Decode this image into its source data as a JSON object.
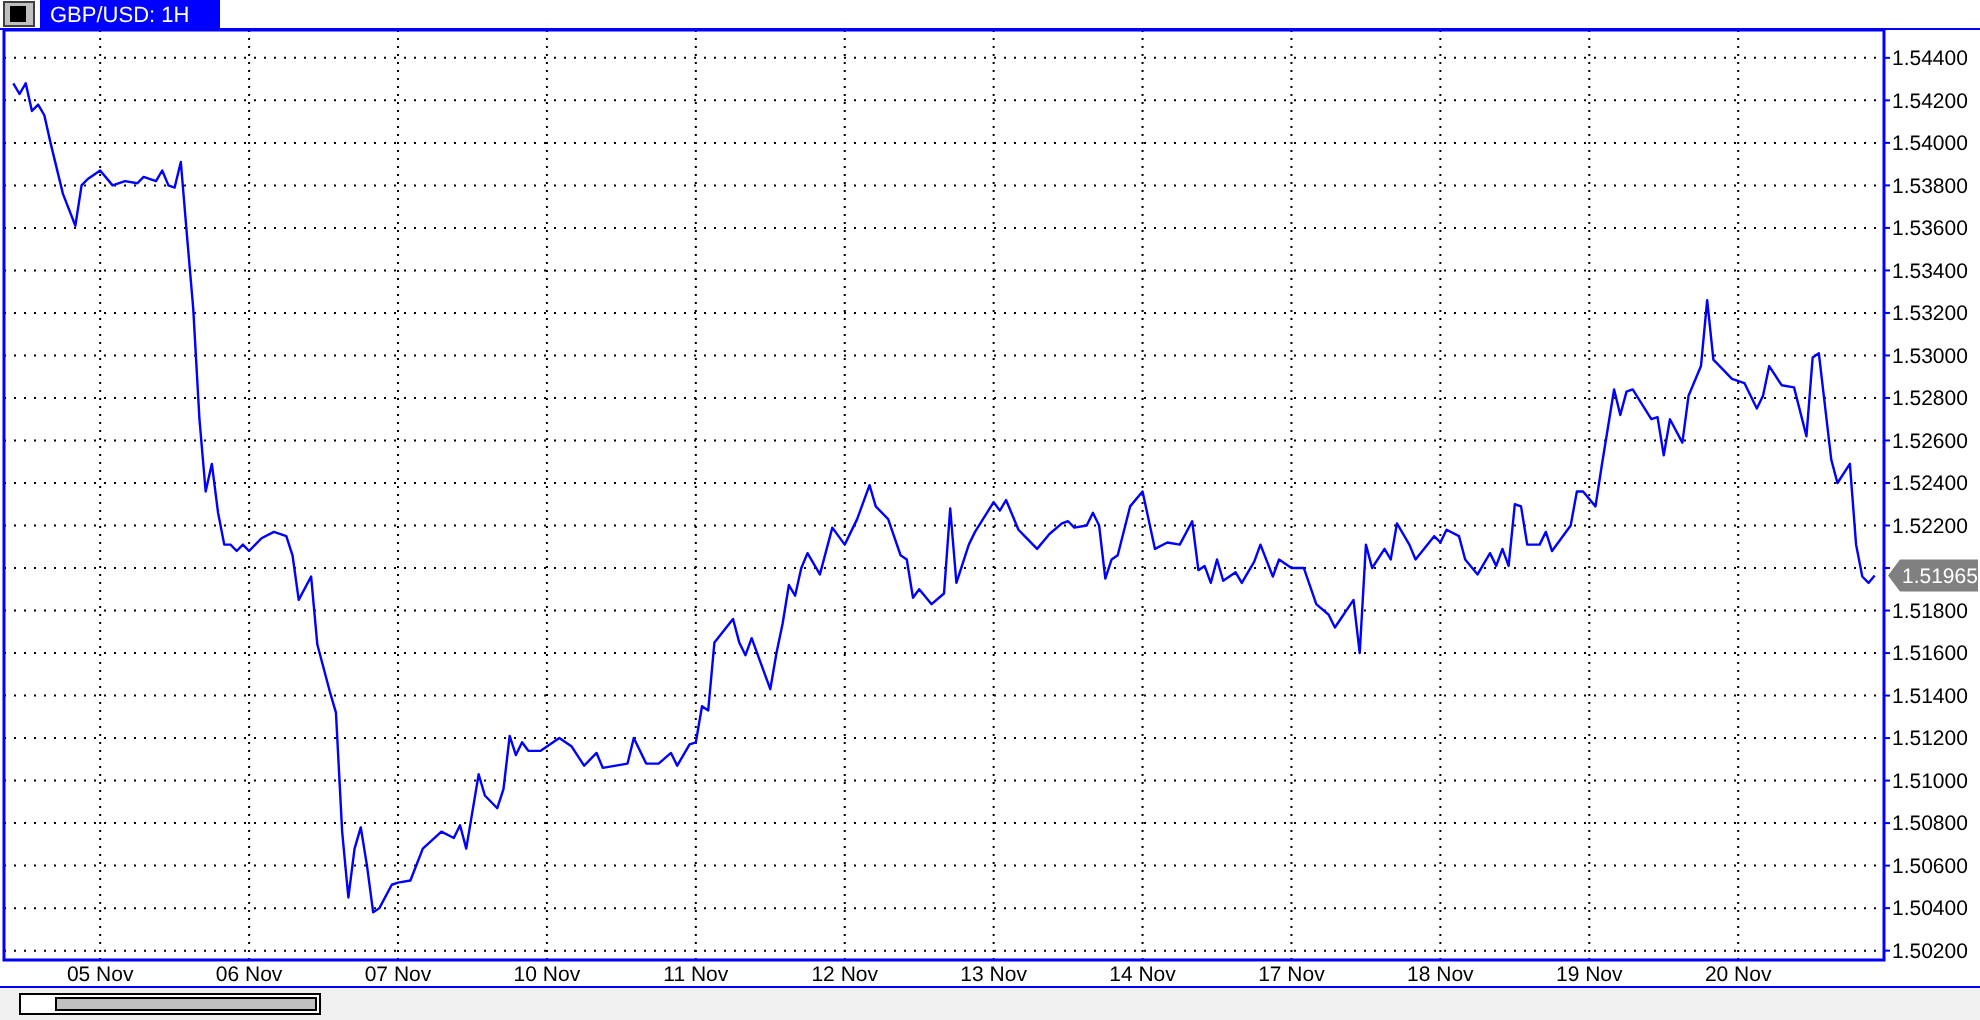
{
  "chart_data": {
    "type": "line",
    "title": "GBP/USD: 1H",
    "grid": true,
    "marker": "none",
    "line_style": "solid",
    "categories": [
      null,
      null,
      null,
      null,
      null,
      null,
      null,
      null,
      null,
      null,
      null,
      null,
      null,
      null,
      null,
      "05 Nov",
      null,
      null,
      null,
      null,
      null,
      null,
      null,
      null,
      null,
      null,
      null,
      null,
      null,
      null,
      null,
      null,
      null,
      null,
      null,
      null,
      null,
      null,
      null,
      "06 Nov",
      null,
      null,
      null,
      null,
      null,
      null,
      null,
      null,
      null,
      null,
      null,
      null,
      null,
      null,
      null,
      null,
      null,
      null,
      null,
      null,
      null,
      null,
      null,
      "07 Nov",
      null,
      null,
      null,
      null,
      null,
      null,
      null,
      null,
      null,
      null,
      null,
      null,
      null,
      null,
      null,
      null,
      null,
      null,
      null,
      null,
      null,
      null,
      null,
      "10 Nov",
      null,
      null,
      null,
      null,
      null,
      null,
      null,
      null,
      null,
      null,
      null,
      null,
      null,
      null,
      null,
      null,
      null,
      null,
      null,
      null,
      null,
      null,
      null,
      "11 Nov",
      null,
      null,
      null,
      null,
      null,
      null,
      null,
      null,
      null,
      null,
      null,
      null,
      null,
      null,
      null,
      null,
      null,
      null,
      null,
      null,
      null,
      null,
      null,
      "12 Nov",
      null,
      null,
      null,
      null,
      null,
      null,
      null,
      null,
      null,
      null,
      null,
      null,
      null,
      null,
      null,
      null,
      null,
      null,
      null,
      null,
      null,
      null,
      null,
      "13 Nov",
      null,
      null,
      null,
      null,
      null,
      null,
      null,
      null,
      null,
      null,
      null,
      null,
      null,
      null,
      null,
      null,
      null,
      null,
      null,
      null,
      null,
      null,
      null,
      "14 Nov",
      null,
      null,
      null,
      null,
      null,
      null,
      null,
      null,
      null,
      null,
      null,
      null,
      null,
      null,
      null,
      null,
      null,
      null,
      null,
      null,
      null,
      null,
      null,
      "17 Nov",
      null,
      null,
      null,
      null,
      null,
      null,
      null,
      null,
      null,
      null,
      null,
      null,
      null,
      null,
      null,
      null,
      null,
      null,
      null,
      null,
      null,
      null,
      null,
      "18 Nov",
      null,
      null,
      null,
      null,
      null,
      null,
      null,
      null,
      null,
      null,
      null,
      null,
      null,
      null,
      null,
      null,
      null,
      null,
      null,
      null,
      null,
      null,
      null,
      "19 Nov",
      null,
      null,
      null,
      null,
      null,
      null,
      null,
      null,
      null,
      null,
      null,
      null,
      null,
      null,
      null,
      null,
      null,
      null,
      null,
      null,
      null,
      null,
      null,
      "20 Nov",
      null,
      null,
      null,
      null,
      null,
      null,
      null,
      null,
      null,
      null,
      null,
      null,
      null,
      null,
      null,
      null,
      null,
      null,
      null,
      null,
      null,
      null,
      null
    ],
    "ylim": [
      1.50156,
      1.54531
    ],
    "yticks": [
      {
        "value": 1.502,
        "label": "1.50200"
      },
      {
        "value": 1.504,
        "label": "1.50400"
      },
      {
        "value": 1.506,
        "label": "1.50600"
      },
      {
        "value": 1.508,
        "label": "1.50800"
      },
      {
        "value": 1.51,
        "label": "1.51000"
      },
      {
        "value": 1.512,
        "label": "1.51200"
      },
      {
        "value": 1.514,
        "label": "1.51400"
      },
      {
        "value": 1.516,
        "label": "1.51600"
      },
      {
        "value": 1.518,
        "label": "1.51800"
      },
      {
        "value": 1.52,
        "label": null
      },
      {
        "value": 1.522,
        "label": "1.52200"
      },
      {
        "value": 1.524,
        "label": "1.52400"
      },
      {
        "value": 1.526,
        "label": "1.52600"
      },
      {
        "value": 1.528,
        "label": "1.52800"
      },
      {
        "value": 1.53,
        "label": "1.53000"
      },
      {
        "value": 1.532,
        "label": "1.53200"
      },
      {
        "value": 1.534,
        "label": "1.53400"
      },
      {
        "value": 1.536,
        "label": "1.53600"
      },
      {
        "value": 1.538,
        "label": "1.53800"
      },
      {
        "value": 1.54,
        "label": "1.54000"
      },
      {
        "value": 1.542,
        "label": "1.54200"
      },
      {
        "value": 1.544,
        "label": "1.54400"
      }
    ],
    "annotations": [
      "1.51965"
    ],
    "series": [
      {
        "color": "#0000ff",
        "values": [
          null,
          1.5428,
          1.5423,
          1.5428,
          1.5415,
          1.5418,
          1.5413,
          1.54,
          null,
          1.5376,
          null,
          1.5361,
          1.538,
          1.5383,
          null,
          1.5387,
          null,
          1.538,
          null,
          1.5382,
          null,
          1.5381,
          1.5384,
          null,
          1.5382,
          1.5387,
          1.538,
          1.5379,
          1.5391,
          1.5356,
          1.5322,
          1.527,
          1.5236,
          1.5249,
          1.5226,
          1.5211,
          1.5211,
          1.5208,
          1.5211,
          1.5208,
          1.5211,
          1.5214,
          null,
          1.5217,
          null,
          1.5215,
          1.5206,
          1.5185,
          null,
          1.5196,
          1.5164,
          null,
          1.5142,
          1.5132,
          1.5076,
          1.5045,
          1.5068,
          1.5078,
          1.506,
          1.5038,
          1.504,
          null,
          1.5051,
          1.5052,
          null,
          1.5053,
          null,
          1.5068,
          null,
          null,
          1.5076,
          null,
          1.5073,
          1.5079,
          1.5068,
          null,
          1.5103,
          1.5093,
          null,
          1.5087,
          1.5096,
          1.5121,
          1.5112,
          1.5118,
          1.5114,
          null,
          1.5114,
          null,
          null,
          1.512,
          null,
          1.5116,
          null,
          1.5107,
          null,
          1.5113,
          1.5106,
          null,
          null,
          null,
          1.5108,
          1.512,
          null,
          1.5108,
          null,
          1.5108,
          null,
          1.5113,
          1.5107,
          null,
          1.5117,
          1.5118,
          1.5135,
          1.5133,
          1.5165,
          null,
          null,
          1.5176,
          1.5165,
          1.5159,
          1.5167,
          null,
          null,
          1.5143,
          1.516,
          1.5174,
          1.5192,
          1.5187,
          1.52,
          1.5207,
          null,
          1.5197,
          null,
          1.5219,
          null,
          1.5211,
          null,
          1.5223,
          null,
          1.5239,
          1.5229,
          null,
          1.5223,
          null,
          1.5206,
          1.5204,
          1.5186,
          1.519,
          null,
          1.5183,
          null,
          1.5188,
          1.5228,
          1.5193,
          null,
          1.5211,
          1.5217,
          null,
          null,
          1.5231,
          1.5227,
          1.5232,
          null,
          1.5218,
          1.5215,
          null,
          1.5209,
          null,
          1.5216,
          null,
          1.5221,
          1.5222,
          1.5219,
          null,
          1.522,
          1.5226,
          1.522,
          1.5195,
          1.5204,
          1.5206,
          null,
          1.5229,
          null,
          1.5236,
          null,
          1.5209,
          null,
          1.5212,
          null,
          1.5211,
          null,
          1.5222,
          1.5199,
          1.5201,
          1.5193,
          1.5204,
          1.5194,
          null,
          1.5198,
          1.5193,
          null,
          1.5203,
          1.5211,
          null,
          1.5196,
          1.5204,
          null,
          1.52,
          null,
          1.52,
          null,
          1.5183,
          null,
          1.5178,
          1.5172,
          null,
          null,
          1.5185,
          1.516,
          1.5211,
          1.52,
          null,
          1.5209,
          1.5204,
          1.5221,
          null,
          1.5211,
          1.5204,
          null,
          null,
          1.5215,
          1.5212,
          1.5218,
          null,
          1.5215,
          1.5204,
          null,
          1.5197,
          null,
          1.5207,
          1.5201,
          1.5209,
          1.5201,
          1.523,
          1.5229,
          1.5211,
          null,
          1.5211,
          1.5217,
          1.5208,
          null,
          null,
          1.522,
          1.5236,
          1.5236,
          null,
          1.5229,
          1.5248,
          null,
          1.5284,
          1.5272,
          1.5283,
          1.5284,
          null,
          null,
          1.527,
          1.5271,
          1.5253,
          1.527,
          null,
          1.5259,
          1.5281,
          null,
          1.5295,
          1.5326,
          1.5298,
          null,
          null,
          1.5289,
          null,
          1.5287,
          null,
          1.5275,
          1.5281,
          1.5295,
          null,
          1.5286,
          null,
          1.5285,
          null,
          1.5262,
          1.5299,
          1.5301,
          null,
          1.5251,
          1.524,
          null,
          1.5249,
          1.5211,
          1.5196,
          1.5193,
          1.51965,
          null
        ]
      }
    ]
  }
}
